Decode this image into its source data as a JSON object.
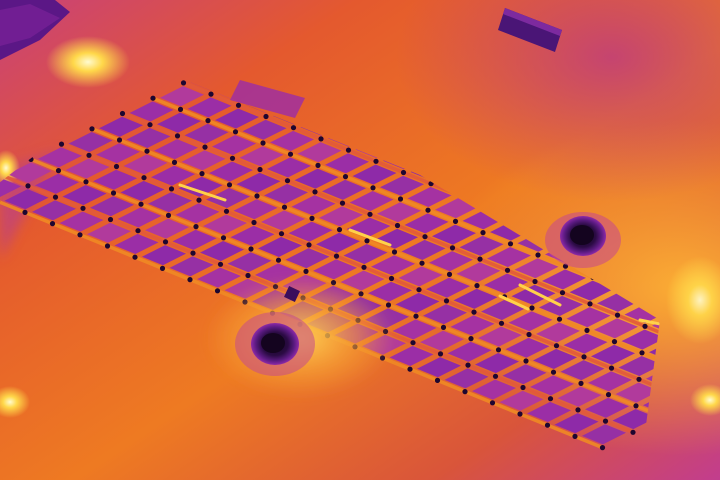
{
  "image": {
    "kind": "thermal-aerial-photo",
    "palette": {
      "cold": "#4a1078",
      "cool": "#8e2aa8",
      "mid_cool": "#b93a96",
      "warm": "#e35a3a",
      "hot": "#f08a24",
      "very_hot": "#ffd24a",
      "hotspot": "#fff6a8",
      "shadow": "#2a0a3e",
      "dark_panel_edge": "#1e0630"
    },
    "grid_dims": {
      "rows": 13,
      "cols": 23
    },
    "drains": 2,
    "roof_objects": [
      "top-left-panel-strip",
      "center-left-hvac-unit",
      "top-right-skylight"
    ]
  }
}
